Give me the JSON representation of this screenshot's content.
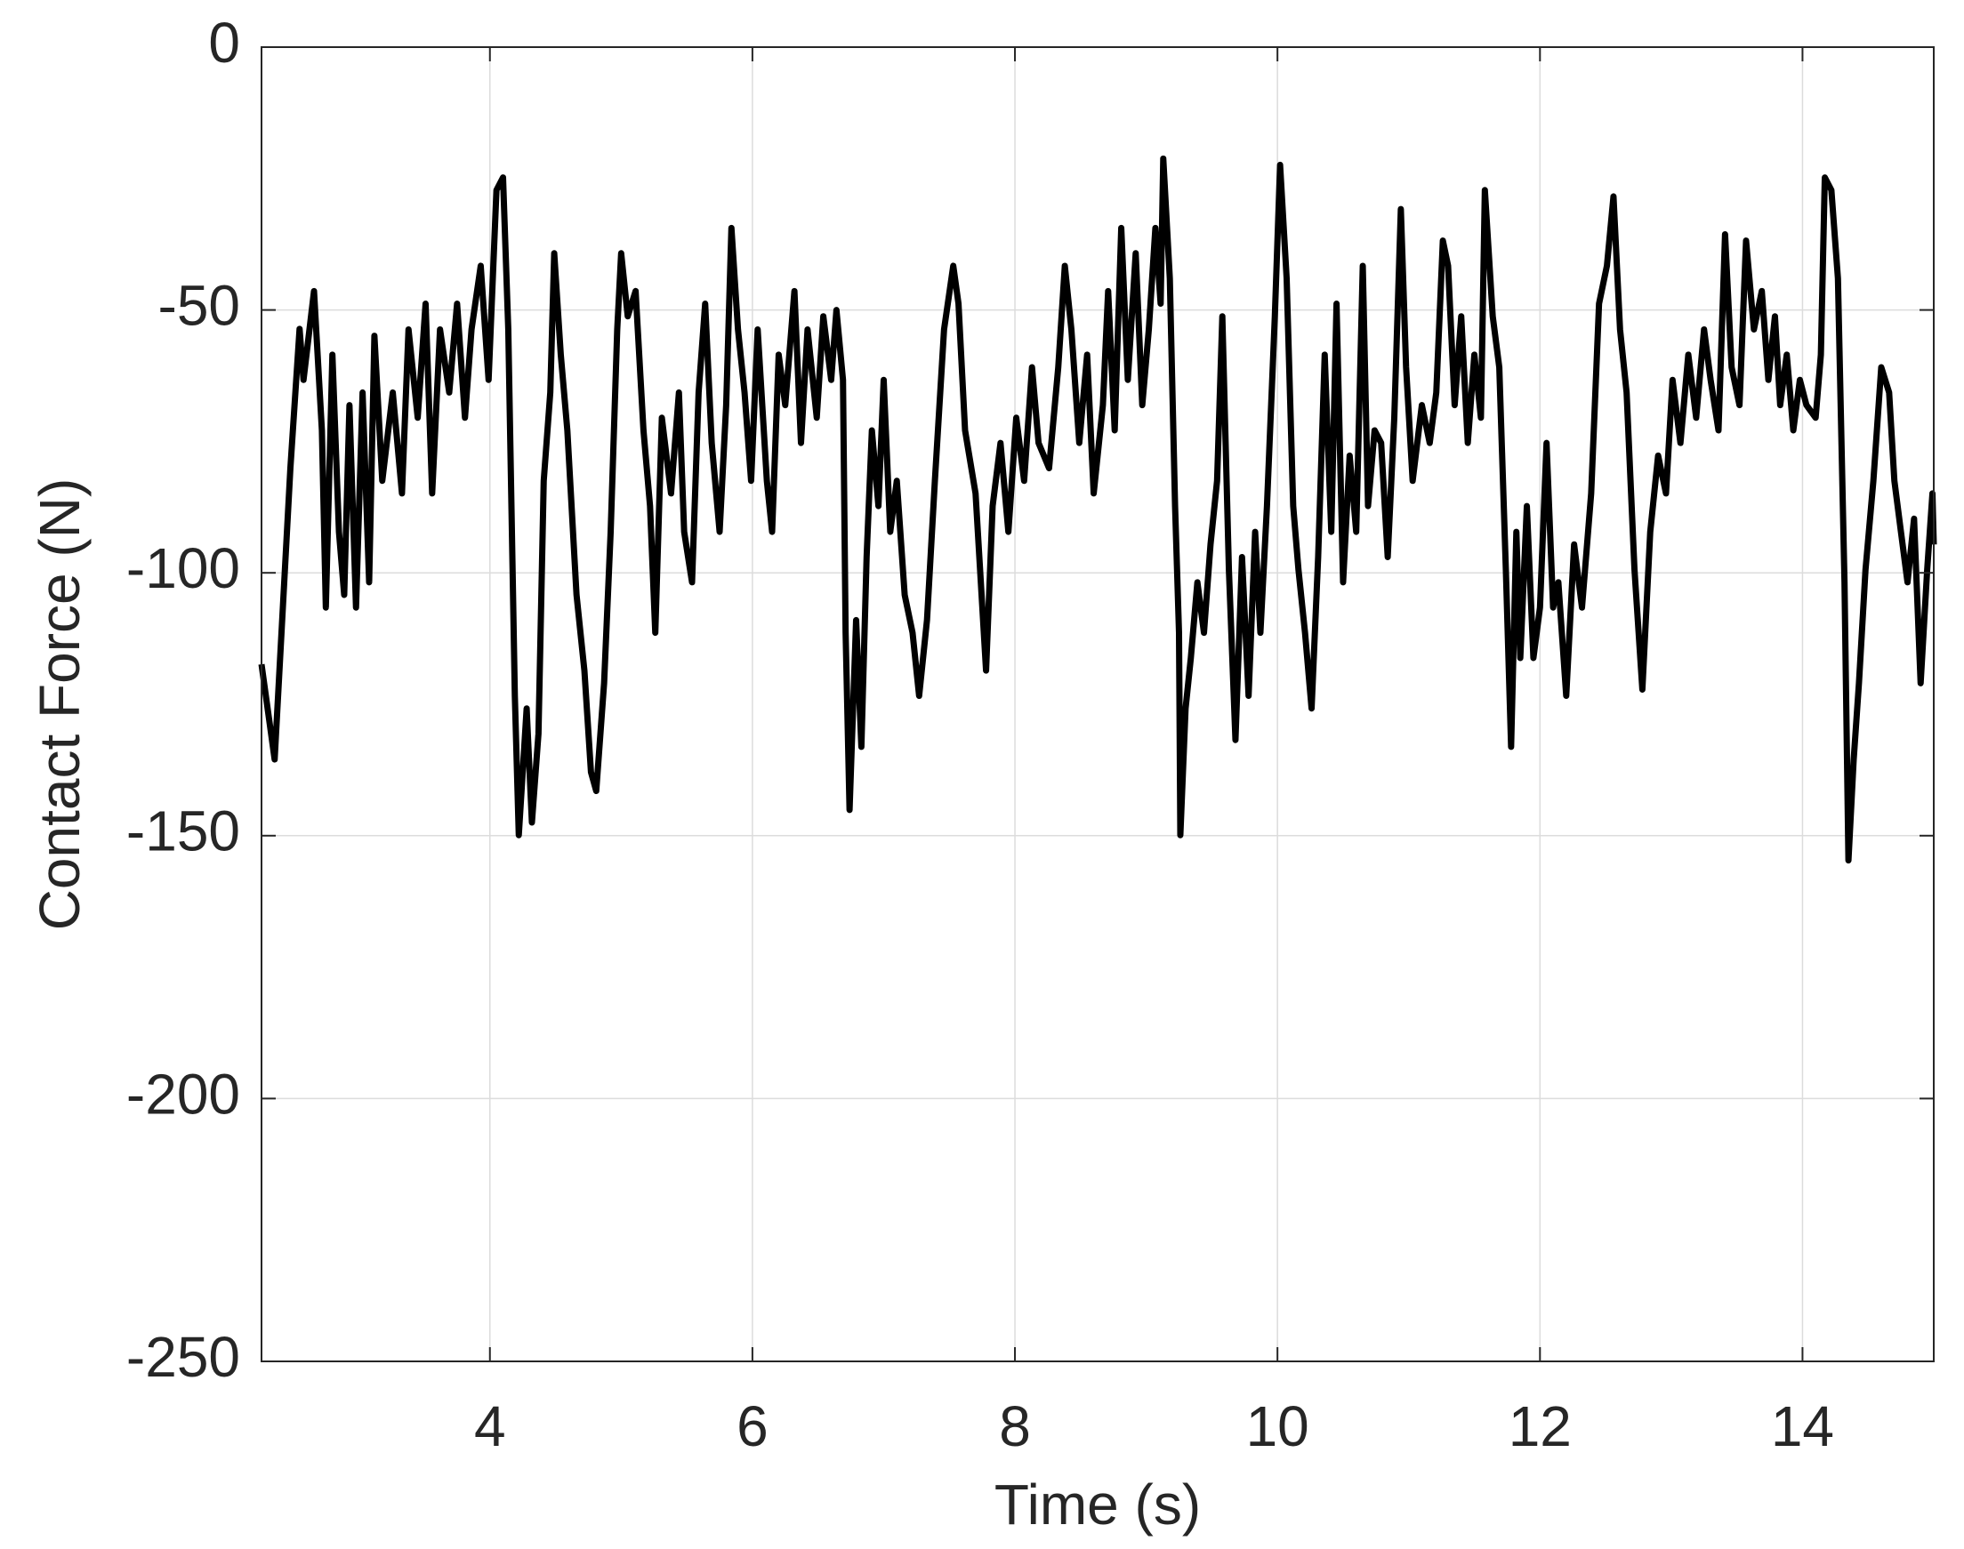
{
  "chart_data": {
    "type": "line",
    "xlabel": "Time (s)",
    "ylabel": "Contact Force (N)",
    "color": "#000000",
    "grid": true,
    "xlim": [
      2.26,
      15
    ],
    "ylim": [
      -250,
      0
    ],
    "xticks": [
      4,
      6,
      8,
      10,
      12,
      14
    ],
    "yticks": [
      -250,
      -200,
      -150,
      -100,
      -50,
      0
    ],
    "x": [
      2.26,
      2.36,
      2.48,
      2.55,
      2.58,
      2.66,
      2.72,
      2.75,
      2.8,
      2.85,
      2.89,
      2.93,
      2.98,
      3.03,
      3.08,
      3.12,
      3.18,
      3.26,
      3.33,
      3.38,
      3.45,
      3.51,
      3.56,
      3.62,
      3.69,
      3.75,
      3.81,
      3.86,
      3.93,
      3.99,
      4.05,
      4.1,
      4.14,
      4.19,
      4.22,
      4.28,
      4.32,
      4.37,
      4.41,
      4.46,
      4.49,
      4.54,
      4.59,
      4.66,
      4.72,
      4.77,
      4.81,
      4.87,
      4.92,
      4.97,
      5.0,
      5.05,
      5.11,
      5.17,
      5.22,
      5.26,
      5.31,
      5.38,
      5.44,
      5.48,
      5.54,
      5.59,
      5.64,
      5.69,
      5.75,
      5.8,
      5.84,
      5.89,
      5.94,
      5.99,
      6.04,
      6.11,
      6.15,
      6.2,
      6.25,
      6.32,
      6.37,
      6.42,
      6.49,
      6.54,
      6.6,
      6.64,
      6.69,
      6.71,
      6.74,
      6.79,
      6.83,
      6.87,
      6.91,
      6.96,
      7.0,
      7.05,
      7.1,
      7.16,
      7.22,
      7.27,
      7.33,
      7.39,
      7.46,
      7.53,
      7.57,
      7.62,
      7.7,
      7.78,
      7.83,
      7.89,
      7.95,
      8.01,
      8.07,
      8.13,
      8.18,
      8.26,
      8.33,
      8.38,
      8.43,
      8.49,
      8.55,
      8.6,
      8.67,
      8.71,
      8.76,
      8.81,
      8.86,
      8.92,
      8.97,
      9.02,
      9.07,
      9.11,
      9.13,
      9.18,
      9.22,
      9.25,
      9.26,
      9.3,
      9.34,
      9.39,
      9.44,
      9.49,
      9.54,
      9.58,
      9.63,
      9.68,
      9.73,
      9.78,
      9.83,
      9.87,
      9.92,
      9.98,
      10.02,
      10.07,
      10.12,
      10.16,
      10.21,
      10.26,
      10.31,
      10.36,
      10.41,
      10.45,
      10.5,
      10.55,
      10.6,
      10.65,
      10.69,
      10.74,
      10.79,
      10.84,
      10.89,
      10.94,
      10.98,
      11.03,
      11.1,
      11.16,
      11.21,
      11.26,
      11.3,
      11.35,
      11.4,
      11.45,
      11.5,
      11.55,
      11.58,
      11.64,
      11.69,
      11.74,
      11.78,
      11.82,
      11.85,
      11.9,
      11.95,
      12.0,
      12.05,
      12.1,
      12.14,
      12.2,
      12.26,
      12.32,
      12.39,
      12.45,
      12.51,
      12.56,
      12.61,
      12.66,
      12.72,
      12.78,
      12.84,
      12.9,
      12.96,
      13.01,
      13.07,
      13.13,
      13.19,
      13.25,
      13.3,
      13.36,
      13.41,
      13.46,
      13.52,
      13.57,
      13.63,
      13.69,
      13.74,
      13.79,
      13.83,
      13.88,
      13.93,
      13.98,
      14.03,
      14.1,
      14.14,
      14.17,
      14.22,
      14.27,
      14.32,
      14.35,
      14.39,
      14.43,
      14.48,
      14.54,
      14.6,
      14.66,
      14.7,
      14.75,
      14.8,
      14.85,
      14.9,
      14.95,
      14.99,
      15.0
    ],
    "values": [
      -117.4,
      -135.5,
      -80.1,
      -53.6,
      -63.3,
      -46.4,
      -72.9,
      -106.6,
      -58.5,
      -92.2,
      -104.2,
      -68.1,
      -106.6,
      -65.7,
      -101.8,
      -54.9,
      -82.5,
      -65.7,
      -84.9,
      -53.7,
      -70.5,
      -48.8,
      -84.9,
      -53.7,
      -65.7,
      -48.8,
      -70.5,
      -53.7,
      -41.6,
      -63.3,
      -27.2,
      -24.8,
      -53.7,
      -123.4,
      -149.9,
      -125.8,
      -147.5,
      -130.6,
      -82.5,
      -65.7,
      -39.2,
      -58.5,
      -72.9,
      -104.2,
      -118.6,
      -137.9,
      -141.5,
      -121.0,
      -92.2,
      -53.7,
      -39.2,
      -51.2,
      -46.4,
      -72.9,
      -87.3,
      -111.4,
      -70.5,
      -84.9,
      -65.7,
      -92.2,
      -101.8,
      -65.7,
      -48.8,
      -75.3,
      -92.2,
      -68.1,
      -34.4,
      -53.7,
      -65.7,
      -82.5,
      -53.7,
      -82.5,
      -92.2,
      -58.5,
      -68.1,
      -46.4,
      -75.3,
      -53.7,
      -70.5,
      -51.2,
      -63.3,
      -50.0,
      -63.3,
      -111.4,
      -145.1,
      -109.0,
      -133.1,
      -97.0,
      -72.9,
      -87.3,
      -63.3,
      -92.2,
      -82.5,
      -104.2,
      -111.4,
      -123.4,
      -109.0,
      -82.5,
      -53.7,
      -41.6,
      -48.8,
      -72.9,
      -84.9,
      -118.6,
      -87.3,
      -75.3,
      -92.2,
      -70.5,
      -82.5,
      -60.9,
      -75.3,
      -80.1,
      -60.9,
      -41.6,
      -53.7,
      -75.3,
      -58.5,
      -84.9,
      -68.1,
      -46.4,
      -72.9,
      -34.4,
      -63.3,
      -39.2,
      -68.1,
      -53.7,
      -34.4,
      -48.8,
      -21.2,
      -44.0,
      -87.3,
      -111.4,
      -149.9,
      -125.8,
      -116.2,
      -101.8,
      -111.4,
      -94.6,
      -82.5,
      -51.2,
      -99.4,
      -131.8,
      -97.0,
      -123.4,
      -92.2,
      -111.4,
      -87.3,
      -51.2,
      -22.4,
      -44.0,
      -87.3,
      -99.4,
      -111.4,
      -125.8,
      -97.0,
      -58.5,
      -92.2,
      -48.8,
      -101.8,
      -77.7,
      -92.2,
      -41.6,
      -87.3,
      -72.9,
      -75.3,
      -97.0,
      -70.5,
      -30.8,
      -60.9,
      -82.5,
      -68.1,
      -75.3,
      -65.7,
      -36.8,
      -41.6,
      -68.1,
      -51.2,
      -75.3,
      -58.5,
      -70.5,
      -27.2,
      -51.2,
      -60.9,
      -99.4,
      -133.1,
      -92.2,
      -116.2,
      -87.3,
      -116.2,
      -106.6,
      -75.3,
      -106.6,
      -101.8,
      -123.4,
      -94.6,
      -106.6,
      -84.9,
      -48.8,
      -41.6,
      -28.4,
      -53.7,
      -65.7,
      -99.4,
      -122.2,
      -92.2,
      -77.7,
      -84.9,
      -63.3,
      -75.3,
      -58.5,
      -70.5,
      -53.7,
      -63.3,
      -72.9,
      -35.6,
      -60.9,
      -68.1,
      -36.8,
      -53.7,
      -46.4,
      -63.3,
      -51.2,
      -68.1,
      -58.5,
      -72.9,
      -63.3,
      -68.1,
      -70.5,
      -58.5,
      -24.8,
      -27.2,
      -44.0,
      -101.8,
      -154.7,
      -135.5,
      -121.0,
      -99.4,
      -82.5,
      -60.9,
      -65.7,
      -82.5,
      -92.2,
      -101.8,
      -89.7,
      -121.0,
      -99.4,
      -84.9,
      -94.6
    ]
  }
}
